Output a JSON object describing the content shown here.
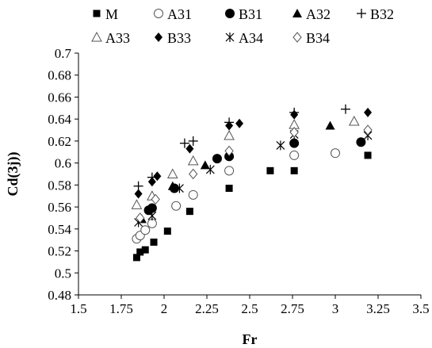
{
  "chart_data": {
    "type": "scatter",
    "xlabel": "Fr",
    "ylabel": "Cd(3j))",
    "xlim": [
      1.5,
      3.5
    ],
    "ylim": [
      0.48,
      0.7
    ],
    "x_ticks": [
      "1.5",
      "1.75",
      "2",
      "2.25",
      "2.5",
      "2.75",
      "3",
      "3.25",
      "3.5"
    ],
    "y_ticks": [
      "0.48",
      "0.5",
      "0.52",
      "0.54",
      "0.56",
      "0.58",
      "0.6",
      "0.62",
      "0.64",
      "0.66",
      "0.68",
      "0.7"
    ],
    "grid": false,
    "legend_position": "top",
    "series": [
      {
        "name": "M",
        "marker": "square-filled",
        "points": [
          [
            1.84,
            0.514
          ],
          [
            1.86,
            0.519
          ],
          [
            1.89,
            0.521
          ],
          [
            1.94,
            0.528
          ],
          [
            2.02,
            0.538
          ],
          [
            2.15,
            0.556
          ],
          [
            2.38,
            0.577
          ],
          [
            2.62,
            0.593
          ],
          [
            2.76,
            0.593
          ],
          [
            3.19,
            0.607
          ]
        ]
      },
      {
        "name": "A31",
        "marker": "circle-open",
        "points": [
          [
            1.84,
            0.531
          ],
          [
            1.86,
            0.534
          ],
          [
            1.89,
            0.539
          ],
          [
            1.93,
            0.545
          ],
          [
            2.07,
            0.561
          ],
          [
            2.17,
            0.571
          ],
          [
            2.38,
            0.593
          ],
          [
            2.76,
            0.607
          ],
          [
            3.0,
            0.609
          ]
        ]
      },
      {
        "name": "B31",
        "marker": "circle-filled",
        "points": [
          [
            1.91,
            0.557
          ],
          [
            1.93,
            0.559
          ],
          [
            2.06,
            0.577
          ],
          [
            2.31,
            0.604
          ],
          [
            2.38,
            0.606
          ],
          [
            2.76,
            0.618
          ],
          [
            3.15,
            0.619
          ]
        ]
      },
      {
        "name": "A32",
        "marker": "triangle-filled",
        "points": [
          [
            1.87,
            0.549
          ],
          [
            1.92,
            0.559
          ],
          [
            2.05,
            0.579
          ],
          [
            2.24,
            0.598
          ],
          [
            2.38,
            0.608
          ],
          [
            2.97,
            0.634
          ]
        ]
      },
      {
        "name": "B32",
        "marker": "plus",
        "points": [
          [
            1.85,
            0.579
          ],
          [
            1.93,
            0.587
          ],
          [
            2.12,
            0.618
          ],
          [
            2.17,
            0.62
          ],
          [
            2.38,
            0.637
          ],
          [
            2.76,
            0.646
          ],
          [
            3.06,
            0.649
          ]
        ]
      },
      {
        "name": "A33",
        "marker": "triangle-open",
        "points": [
          [
            1.84,
            0.562
          ],
          [
            1.93,
            0.57
          ],
          [
            2.05,
            0.59
          ],
          [
            2.17,
            0.602
          ],
          [
            2.38,
            0.625
          ],
          [
            2.76,
            0.635
          ],
          [
            3.11,
            0.638
          ]
        ]
      },
      {
        "name": "B33",
        "marker": "diamond-filled",
        "points": [
          [
            1.85,
            0.572
          ],
          [
            1.93,
            0.583
          ],
          [
            1.96,
            0.588
          ],
          [
            2.15,
            0.613
          ],
          [
            2.38,
            0.634
          ],
          [
            2.44,
            0.636
          ],
          [
            2.76,
            0.644
          ],
          [
            3.19,
            0.646
          ]
        ]
      },
      {
        "name": "A34",
        "marker": "asterisk",
        "points": [
          [
            1.85,
            0.546
          ],
          [
            1.93,
            0.552
          ],
          [
            2.09,
            0.577
          ],
          [
            2.27,
            0.594
          ],
          [
            2.68,
            0.616
          ],
          [
            2.76,
            0.626
          ],
          [
            3.19,
            0.625
          ]
        ]
      },
      {
        "name": "B34",
        "marker": "diamond-open",
        "points": [
          [
            1.86,
            0.55
          ],
          [
            1.95,
            0.567
          ],
          [
            2.17,
            0.59
          ],
          [
            2.38,
            0.611
          ],
          [
            2.76,
            0.628
          ],
          [
            3.19,
            0.63
          ]
        ]
      }
    ]
  }
}
